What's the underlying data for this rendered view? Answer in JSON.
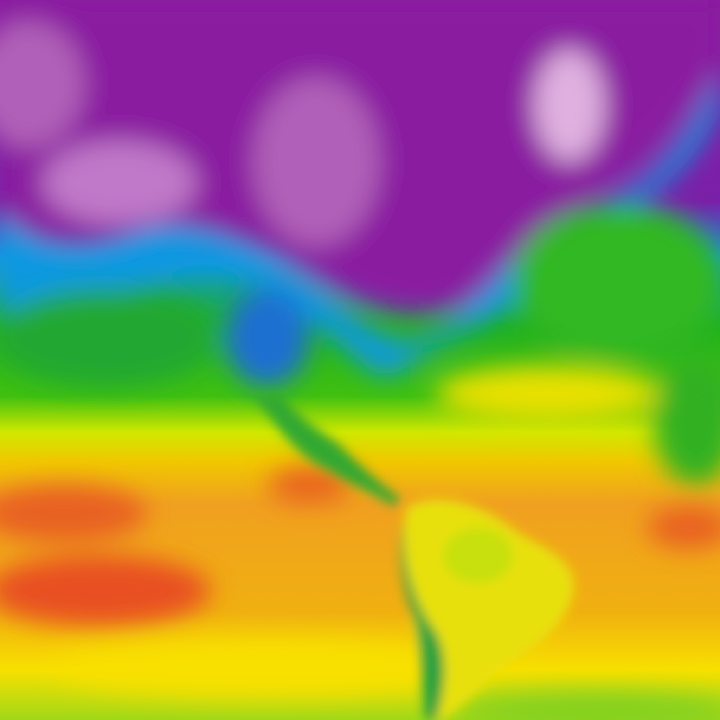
{
  "map": {
    "palette": {
      "coldest": "#f0d8f0",
      "very_cold": "#b060b8",
      "cold": "#8a1aa0",
      "cool_dark": "#3a2aa0",
      "cool": "#1098e0",
      "mild": "#20b020",
      "warm": "#b8e010",
      "hot": "#f8e000",
      "very_hot": "#f0a020",
      "hottest": "#e84020"
    }
  }
}
